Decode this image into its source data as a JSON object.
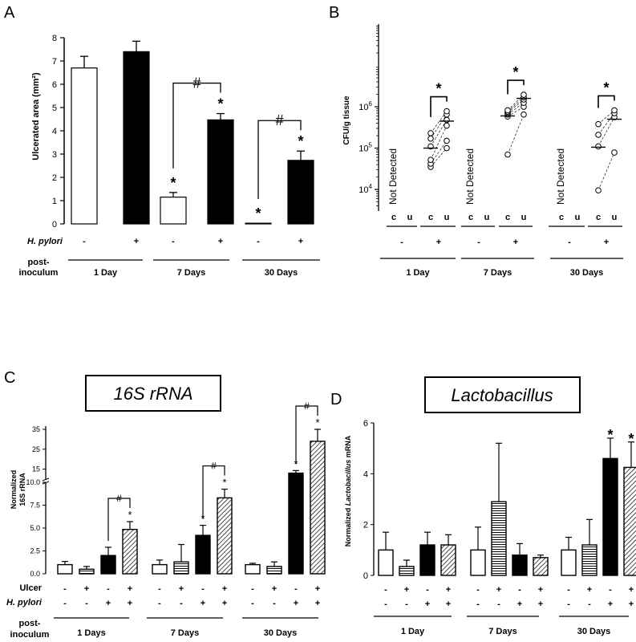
{
  "panels": {
    "a": {
      "letter": "A",
      "ylabel": "Ulcerated area (mm²)"
    },
    "b": {
      "letter": "B",
      "ylabel": "CFU/g tissue"
    },
    "c": {
      "letter": "C",
      "title": "16S rRNA",
      "ylabel_line1": "Normalized",
      "ylabel_line2": "16S rRNA"
    },
    "d": {
      "letter": "D",
      "title": "Lactobacillus",
      "ylabel_pre": "Normalized ",
      "ylabel_gene": "Lactobacillus",
      "ylabel_post": "  mRNA"
    }
  },
  "chart_data": [
    {
      "panel": "A",
      "type": "bar",
      "ylabel": "Ulcerated area (mm²)",
      "ylim": [
        0,
        8
      ],
      "yticks": [
        0,
        1,
        2,
        3,
        4,
        5,
        6,
        7,
        8
      ],
      "factor_labels": [
        "H. pylori",
        "post-inoculum"
      ],
      "hpylori": [
        "-",
        "+",
        "-",
        "+",
        "-",
        "+"
      ],
      "groups": [
        "1 Day",
        "7 Days",
        "30 Days"
      ],
      "bar_fill": [
        "white",
        "black",
        "white",
        "black",
        "white",
        "black"
      ],
      "values": [
        6.7,
        7.4,
        1.15,
        4.47,
        0.03,
        2.73
      ],
      "errors": [
        0.5,
        0.45,
        0.2,
        0.27,
        0,
        0.4
      ],
      "significance": [
        {
          "bar": 2,
          "mark": "*"
        },
        {
          "bar": 3,
          "mark": "*"
        },
        {
          "bar": 4,
          "mark": "*"
        },
        {
          "bar": 5,
          "mark": "*"
        },
        {
          "bars": [
            2,
            3
          ],
          "mark": "#"
        },
        {
          "bars": [
            4,
            5
          ],
          "mark": "#"
        }
      ]
    },
    {
      "panel": "B",
      "type": "scatter",
      "yscale": "log",
      "ylabel": "CFU/g tissue",
      "ylim": [
        3000,
        100000000
      ],
      "yticks": [
        10000,
        100000,
        1000000
      ],
      "ytick_labels": [
        {
          "base": "10",
          "exp": "4"
        },
        {
          "base": "10",
          "exp": "5"
        },
        {
          "base": "10",
          "exp": "6"
        }
      ],
      "hpylori": [
        "-",
        "+",
        "-",
        "+",
        "-",
        "+"
      ],
      "tissue_labels": [
        "c",
        "u"
      ],
      "groups": [
        "1 Day",
        "7 Days",
        "30 Days"
      ],
      "not_detected_text": "Not Detected",
      "series": [
        {
          "group": "1 Day",
          "c": [
            35000,
            42000,
            52000,
            110000,
            170000,
            230000
          ],
          "u": [
            100000,
            150000,
            350000,
            480000,
            650000,
            780000
          ],
          "median_c": 100000,
          "median_u": 450000
        },
        {
          "group": "7 Days",
          "c": [
            70000,
            580000,
            650000,
            710000,
            760000,
            820000
          ],
          "u": [
            650000,
            1000000,
            1250000,
            1500000,
            1700000,
            1950000
          ],
          "median_c": 600000,
          "median_u": 1600000
        },
        {
          "group": "30 Days",
          "c": [
            9500,
            110000,
            210000,
            380000
          ],
          "u": [
            78000,
            560000,
            700000,
            820000
          ],
          "median_c": 105000,
          "median_u": 500000
        }
      ],
      "significance": [
        {
          "group": "1 Day",
          "mark": "*"
        },
        {
          "group": "7 Days",
          "mark": "*"
        },
        {
          "group": "30 Days",
          "mark": "*"
        }
      ]
    },
    {
      "panel": "C",
      "type": "bar",
      "title": "16S rRNA",
      "ylabel": "Normalized 16S rRNA",
      "ylim_lower": [
        0,
        10
      ],
      "ylim_upper": [
        10,
        35
      ],
      "yticks_lower": [
        0.0,
        2.5,
        5.0,
        7.5,
        10.0
      ],
      "ytick_labels_lower": [
        "0.0",
        "2.5",
        "5.0",
        "7.5",
        "10.0"
      ],
      "yticks_upper": [
        15,
        25,
        35
      ],
      "factor_labels": [
        "Ulcer",
        "H. pylori",
        "post-inoculum"
      ],
      "ulcer": [
        "-",
        "+",
        "-",
        "+",
        "-",
        "+",
        "-",
        "+",
        "-",
        "+",
        "-",
        "+"
      ],
      "hpylori": [
        "-",
        "-",
        "+",
        "+",
        "-",
        "-",
        "+",
        "+",
        "-",
        "-",
        "+",
        "+"
      ],
      "groups": [
        "1 Days",
        "7 Days",
        "30 Days"
      ],
      "bar_fill": [
        "white",
        "hstripe",
        "black",
        "diag",
        "white",
        "hstripe",
        "black",
        "diag",
        "white",
        "hstripe",
        "black",
        "diag"
      ],
      "values": [
        1.0,
        0.5,
        2.0,
        4.85,
        1.0,
        1.3,
        4.2,
        8.3,
        1.0,
        0.8,
        13.0,
        29.0
      ],
      "errors": [
        0.35,
        0.3,
        0.9,
        0.85,
        0.5,
        1.9,
        1.1,
        0.95,
        0.15,
        0.5,
        1.3,
        6.0
      ],
      "significance": [
        {
          "bar": 3,
          "mark": "*"
        },
        {
          "bar": 6,
          "mark": "*"
        },
        {
          "bar": 7,
          "mark": "*"
        },
        {
          "bar": 10,
          "mark": "*"
        },
        {
          "bar": 11,
          "mark": "*"
        },
        {
          "bars": [
            2,
            3
          ],
          "mark": "#"
        },
        {
          "bars": [
            6,
            7
          ],
          "mark": "#"
        },
        {
          "bars": [
            10,
            11
          ],
          "mark": "#"
        }
      ]
    },
    {
      "panel": "D",
      "type": "bar",
      "title": "Lactobacillus",
      "ylabel": "Normalized Lactobacillus mRNA",
      "ylim": [
        0,
        6
      ],
      "yticks": [
        0,
        2,
        4,
        6
      ],
      "ulcer": [
        "-",
        "+",
        "-",
        "+",
        "-",
        "+",
        "-",
        "+",
        "-",
        "+",
        "-",
        "+"
      ],
      "hpylori": [
        "-",
        "-",
        "+",
        "+",
        "-",
        "-",
        "+",
        "+",
        "-",
        "-",
        "+",
        "+"
      ],
      "groups": [
        "1 Day",
        "7 Days",
        "30 Days"
      ],
      "bar_fill": [
        "white",
        "hstripe",
        "black",
        "diag",
        "white",
        "hstripe",
        "black",
        "diag",
        "white",
        "hstripe",
        "black",
        "diag"
      ],
      "values": [
        1.0,
        0.35,
        1.2,
        1.2,
        1.0,
        2.9,
        0.8,
        0.7,
        1.0,
        1.2,
        4.6,
        4.25
      ],
      "errors": [
        0.7,
        0.25,
        0.5,
        0.4,
        0.9,
        2.3,
        0.45,
        0.1,
        0.5,
        1.0,
        0.8,
        1.0
      ],
      "significance": [
        {
          "bar": 10,
          "mark": "*"
        },
        {
          "bar": 11,
          "mark": "*"
        }
      ]
    }
  ]
}
